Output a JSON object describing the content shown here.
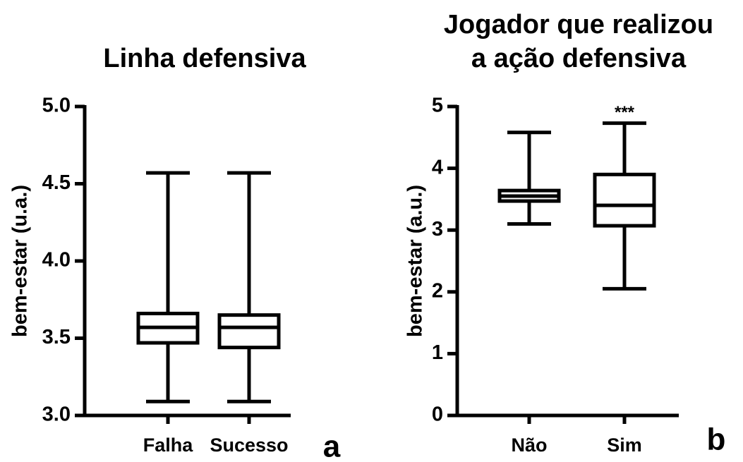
{
  "chart_data": [
    {
      "type": "box",
      "title": [
        "Linha defensiva"
      ],
      "ylabel": "bem-estar (u.a.)",
      "categories": [
        "Falha",
        "Sucesso"
      ],
      "boxes": [
        {
          "min": 3.09,
          "q1": 3.47,
          "median": 3.57,
          "q3": 3.66,
          "max": 4.57
        },
        {
          "min": 3.09,
          "q1": 3.44,
          "median": 3.57,
          "q3": 3.65,
          "max": 4.57
        }
      ],
      "ylim": [
        3,
        5
      ],
      "yticks": [
        {
          "value": 3,
          "label": "3.0"
        },
        {
          "value": 3.5,
          "label": "3.5"
        },
        {
          "value": 4,
          "label": "4.0"
        },
        {
          "value": 4.5,
          "label": "4.5"
        },
        {
          "value": 5,
          "label": "5.0"
        }
      ],
      "panel": "a",
      "color": "#000000"
    },
    {
      "type": "box",
      "title": [
        "Jogador que realizou",
        "a ação defensiva"
      ],
      "ylabel": "bem-estar (a.u.)",
      "categories": [
        "Não",
        "Sim"
      ],
      "boxes": [
        {
          "min": 3.1,
          "q1": 3.47,
          "median": 3.55,
          "q3": 3.64,
          "max": 4.58
        },
        {
          "min": 2.05,
          "q1": 3.07,
          "median": 3.4,
          "q3": 3.9,
          "max": 4.73
        }
      ],
      "annotations": [
        null,
        "***"
      ],
      "ylim": [
        0,
        5
      ],
      "yticks": [
        0,
        1,
        2,
        3,
        4,
        5
      ],
      "panel": "b",
      "color": "#000000"
    }
  ]
}
